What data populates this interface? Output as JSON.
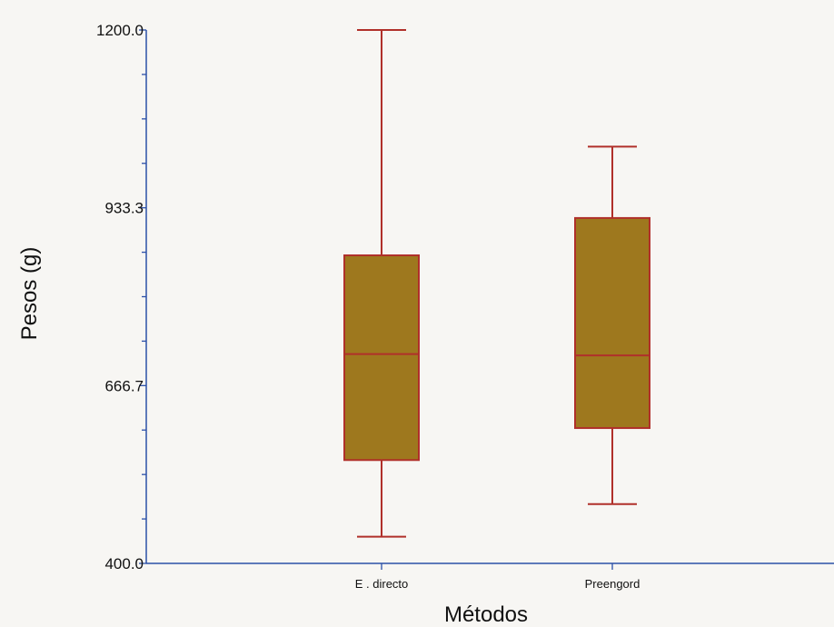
{
  "chart_data": {
    "type": "box",
    "title": "",
    "xlabel": "Métodos",
    "ylabel": "Pesos (g)",
    "ylim": [
      400.0,
      1200.0
    ],
    "y_ticks": [
      "1200.0",
      "933.3",
      "666.7",
      "400.0"
    ],
    "y_tick_values": [
      1200.0,
      933.3,
      666.7,
      400.0
    ],
    "categories": [
      "E . directo",
      "Preengord"
    ],
    "boxes": [
      {
        "category": "E . directo",
        "min": 440,
        "q1": 555,
        "median": 714,
        "q3": 862,
        "max": 1200
      },
      {
        "category": "Preengord",
        "min": 489,
        "q1": 603,
        "median": 712,
        "q3": 918,
        "max": 1025
      }
    ],
    "grid": false,
    "colors": {
      "axis": "#2b50a8",
      "box_fill": "#9e781e",
      "box_stroke": "#b0302a",
      "whisker": "#b0302a"
    }
  }
}
